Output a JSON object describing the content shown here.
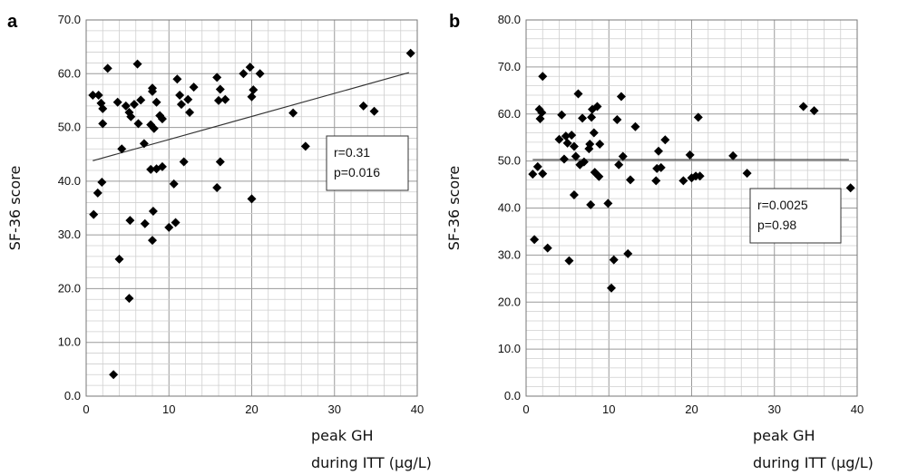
{
  "chart_data": [
    {
      "type": "scatter",
      "panel_label": "a",
      "ylabel": "SF-36 score",
      "xlabel_lines": [
        "peak GH",
        "during ITT (µg/L)"
      ],
      "xlim": [
        0,
        40
      ],
      "ylim": [
        0,
        70
      ],
      "x_ticks": [
        "0",
        "10",
        "20",
        "30",
        "40"
      ],
      "y_ticks": [
        "0.0",
        "10.0",
        "20.0",
        "30.0",
        "40.0",
        "50.0",
        "60.0",
        "70.0"
      ],
      "grid": true,
      "annotation_lines": [
        "r=0.31",
        "p=0.016"
      ],
      "trendline": [
        [
          0.8,
          43.8
        ],
        [
          39,
          60.2
        ]
      ],
      "points": [
        [
          0.8,
          56.0
        ],
        [
          1.5,
          56.0
        ],
        [
          1.8,
          54.5
        ],
        [
          2.0,
          53.5
        ],
        [
          2.0,
          50.7
        ],
        [
          2.6,
          61.0
        ],
        [
          3.8,
          54.7
        ],
        [
          4.8,
          54.0
        ],
        [
          5.2,
          52.8
        ],
        [
          5.4,
          52.0
        ],
        [
          5.8,
          54.3
        ],
        [
          6.2,
          61.8
        ],
        [
          6.3,
          50.7
        ],
        [
          6.6,
          55.1
        ],
        [
          7.0,
          47.0
        ],
        [
          7.8,
          50.5
        ],
        [
          8.0,
          57.3
        ],
        [
          8.0,
          56.7
        ],
        [
          8.2,
          49.8
        ],
        [
          8.5,
          54.7
        ],
        [
          8.9,
          52.2
        ],
        [
          9.2,
          51.6
        ],
        [
          11.0,
          59.0
        ],
        [
          11.3,
          56.0
        ],
        [
          11.5,
          54.3
        ],
        [
          12.3,
          55.2
        ],
        [
          12.5,
          52.8
        ],
        [
          13.0,
          57.5
        ],
        [
          15.8,
          59.3
        ],
        [
          16.0,
          55.0
        ],
        [
          16.2,
          57.1
        ],
        [
          16.8,
          55.2
        ],
        [
          19.0,
          60.0
        ],
        [
          19.8,
          61.2
        ],
        [
          20.0,
          55.7
        ],
        [
          20.2,
          57.0
        ],
        [
          21.0,
          60.0
        ],
        [
          25.0,
          52.7
        ],
        [
          26.5,
          46.5
        ],
        [
          33.5,
          54.0
        ],
        [
          34.8,
          53.0
        ],
        [
          39.2,
          63.8
        ],
        [
          0.9,
          33.8
        ],
        [
          1.4,
          37.8
        ],
        [
          1.9,
          39.8
        ],
        [
          4.3,
          46.0
        ],
        [
          3.3,
          4.0
        ],
        [
          4.0,
          25.5
        ],
        [
          5.2,
          18.2
        ],
        [
          5.3,
          32.7
        ],
        [
          7.1,
          32.1
        ],
        [
          7.8,
          42.2
        ],
        [
          8.5,
          42.3
        ],
        [
          8.1,
          34.4
        ],
        [
          8.0,
          29.0
        ],
        [
          9.2,
          42.7
        ],
        [
          10.0,
          31.4
        ],
        [
          10.8,
          32.3
        ],
        [
          10.6,
          39.5
        ],
        [
          11.8,
          43.6
        ],
        [
          15.8,
          38.8
        ],
        [
          16.2,
          43.6
        ],
        [
          20.0,
          36.7
        ]
      ]
    },
    {
      "type": "scatter",
      "panel_label": "b",
      "ylabel": "SF-36 score",
      "xlabel_lines": [
        "peak GH",
        "during ITT (µg/L)"
      ],
      "xlim": [
        0,
        40
      ],
      "ylim": [
        0,
        80
      ],
      "x_ticks": [
        "0",
        "10",
        "20",
        "30",
        "40"
      ],
      "y_ticks": [
        "0.0",
        "10.0",
        "20.0",
        "30.0",
        "40.0",
        "50.0",
        "60.0",
        "70.0",
        "80.0"
      ],
      "grid": true,
      "annotation_lines": [
        "r=0.0025",
        "p=0.98"
      ],
      "trendline": [
        [
          0.8,
          50.3
        ],
        [
          39,
          50.3
        ]
      ],
      "points": [
        [
          0.8,
          47.2
        ],
        [
          1.0,
          33.3
        ],
        [
          1.4,
          48.8
        ],
        [
          1.6,
          61.0
        ],
        [
          1.7,
          59.0
        ],
        [
          1.9,
          60.3
        ],
        [
          2.0,
          68.0
        ],
        [
          2.0,
          47.3
        ],
        [
          2.6,
          31.5
        ],
        [
          4.0,
          54.6
        ],
        [
          4.3,
          59.8
        ],
        [
          4.6,
          50.4
        ],
        [
          4.8,
          55.3
        ],
        [
          5.0,
          53.8
        ],
        [
          5.2,
          28.8
        ],
        [
          5.5,
          55.5
        ],
        [
          5.8,
          53.1
        ],
        [
          5.8,
          42.8
        ],
        [
          6.0,
          51.0
        ],
        [
          6.3,
          64.3
        ],
        [
          6.5,
          49.2
        ],
        [
          6.8,
          59.1
        ],
        [
          7.0,
          49.8
        ],
        [
          7.6,
          52.6
        ],
        [
          7.7,
          53.6
        ],
        [
          7.8,
          40.7
        ],
        [
          7.9,
          59.3
        ],
        [
          8.0,
          61.0
        ],
        [
          8.2,
          56.0
        ],
        [
          8.3,
          47.6
        ],
        [
          8.6,
          61.6
        ],
        [
          8.8,
          46.7
        ],
        [
          8.9,
          53.6
        ],
        [
          9.9,
          41.0
        ],
        [
          10.3,
          23.0
        ],
        [
          10.6,
          29.0
        ],
        [
          11.0,
          58.8
        ],
        [
          11.2,
          49.2
        ],
        [
          11.5,
          63.7
        ],
        [
          11.7,
          51.0
        ],
        [
          12.3,
          30.3
        ],
        [
          12.6,
          46.0
        ],
        [
          13.2,
          57.3
        ],
        [
          15.7,
          45.8
        ],
        [
          15.8,
          48.4
        ],
        [
          16.0,
          52.1
        ],
        [
          16.3,
          48.6
        ],
        [
          16.8,
          54.5
        ],
        [
          19.0,
          45.8
        ],
        [
          19.8,
          51.3
        ],
        [
          20.0,
          46.4
        ],
        [
          20.5,
          46.8
        ],
        [
          20.8,
          59.3
        ],
        [
          21.0,
          46.8
        ],
        [
          25.0,
          51.1
        ],
        [
          26.7,
          47.4
        ],
        [
          33.5,
          61.6
        ],
        [
          34.8,
          60.7
        ],
        [
          39.2,
          44.3
        ]
      ]
    }
  ]
}
